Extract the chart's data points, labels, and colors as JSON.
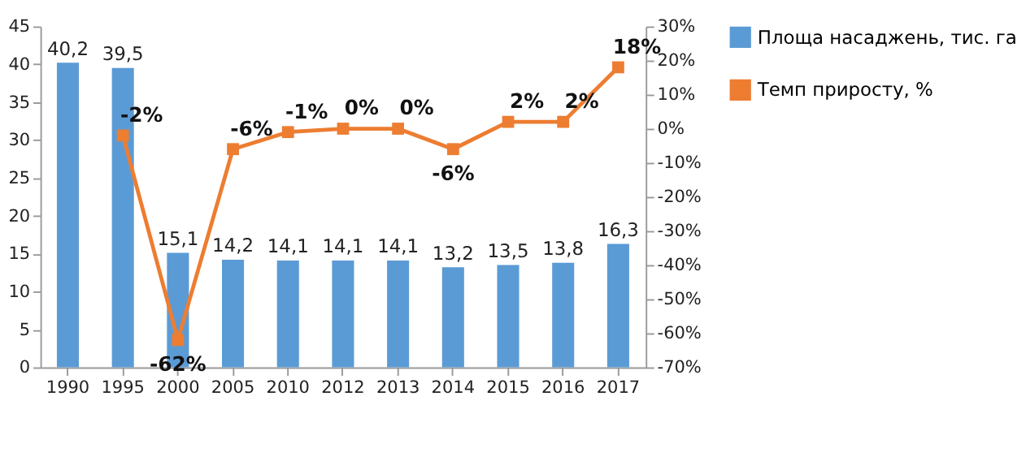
{
  "chart_data": {
    "type": "bar",
    "categories": [
      "1990",
      "1995",
      "2000",
      "2005",
      "2010",
      "2012",
      "2013",
      "2014",
      "2015",
      "2016",
      "2017"
    ],
    "series": [
      {
        "name": "Площа насаджень, тис. га",
        "color": "#5b9bd5",
        "values": [
          40.2,
          39.5,
          15.1,
          14.2,
          14.1,
          14.1,
          14.1,
          13.2,
          13.5,
          13.8,
          16.3
        ],
        "value_labels": [
          "40,2",
          "39,5",
          "15,1",
          "14,2",
          "14,1",
          "14,1",
          "14,1",
          "13,2",
          "13,5",
          "13,8",
          "16,3"
        ]
      },
      {
        "name": "Темп приросту, %",
        "type": "line",
        "axis": "y2",
        "color": "#ed7d31",
        "marker": "square",
        "line_style": "solid",
        "values": [
          null,
          -2,
          -62,
          -6,
          -1,
          0,
          0,
          -6,
          2,
          2,
          18
        ],
        "value_labels": [
          null,
          "-2%",
          "-62%",
          "-6%",
          "-1%",
          "0%",
          "0%",
          "-6%",
          "2%",
          "2%",
          "18%"
        ]
      }
    ],
    "ylim": [
      0,
      45
    ],
    "yticks": [
      0,
      5,
      10,
      15,
      20,
      25,
      30,
      35,
      40,
      45
    ],
    "y2lim": [
      -70,
      30
    ],
    "y2ticks": [
      {
        "value": 30,
        "label": "30%"
      },
      {
        "value": 20,
        "label": "20%"
      },
      {
        "value": 10,
        "label": "10%"
      },
      {
        "value": 0,
        "label": "0%"
      },
      {
        "value": -10,
        "label": "-10%"
      },
      {
        "value": -20,
        "label": "-20%"
      },
      {
        "value": -30,
        "label": "-30%"
      },
      {
        "value": -40,
        "label": "-40%"
      },
      {
        "value": -50,
        "label": "-50%"
      },
      {
        "value": -60,
        "label": "-60%"
      },
      {
        "value": -70,
        "label": "-70%"
      }
    ],
    "grid": false,
    "legend": "right"
  }
}
